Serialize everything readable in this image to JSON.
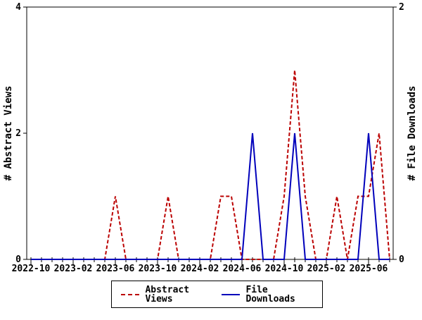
{
  "chart_data": {
    "type": "line",
    "title": "",
    "months": [
      "2022-10",
      "2022-11",
      "2022-12",
      "2023-01",
      "2023-02",
      "2023-03",
      "2023-04",
      "2023-05",
      "2023-06",
      "2023-07",
      "2023-08",
      "2023-09",
      "2023-10",
      "2023-11",
      "2023-12",
      "2024-01",
      "2024-02",
      "2024-03",
      "2024-04",
      "2024-05",
      "2024-06",
      "2024-07",
      "2024-08",
      "2024-09",
      "2024-10",
      "2024-11",
      "2024-12",
      "2025-01",
      "2025-02",
      "2025-03",
      "2025-04",
      "2025-05",
      "2025-06",
      "2025-07",
      "2025-08"
    ],
    "series": [
      {
        "name": "Abstract Views",
        "color": "#bb0000",
        "line_style": "dashed",
        "axis": "left",
        "values": [
          0,
          0,
          0,
          0,
          0,
          0,
          0,
          0,
          1,
          0,
          0,
          0,
          0,
          1,
          0,
          0,
          0,
          0,
          1,
          1,
          0,
          0,
          0,
          0,
          1,
          3,
          1,
          0,
          0,
          1,
          0,
          1,
          1,
          2,
          0
        ]
      },
      {
        "name": "File Downloads",
        "color": "#0000bb",
        "line_style": "solid",
        "axis": "right",
        "values": [
          0,
          0,
          0,
          0,
          0,
          0,
          0,
          0,
          0,
          0,
          0,
          0,
          0,
          0,
          0,
          0,
          0,
          0,
          0,
          0,
          0,
          1,
          0,
          0,
          0,
          1,
          0,
          0,
          0,
          0,
          0,
          0,
          1,
          0,
          0
        ]
      }
    ],
    "left_axis": {
      "label": "# Abstract Views",
      "min": 0,
      "max": 4,
      "tick_values": [
        0,
        2,
        4
      ]
    },
    "right_axis": {
      "label": "# File Downloads",
      "min": 0,
      "max": 2,
      "tick_values": [
        0,
        2
      ]
    },
    "x_tick_labels": [
      "2022-10",
      "2023-02",
      "2023-06",
      "2023-10",
      "2024-02",
      "2024-06",
      "2024-10",
      "2025-02",
      "2025-06"
    ],
    "x_tick_every": 4,
    "grid": false,
    "legend_position": "bottom",
    "axis_color": "#000000",
    "background": "#ffffff"
  },
  "legend": {
    "items": [
      {
        "label": "Abstract Views",
        "color": "#bb0000",
        "style": "dashed"
      },
      {
        "label": "File Downloads",
        "color": "#0000bb",
        "style": "solid"
      }
    ]
  }
}
